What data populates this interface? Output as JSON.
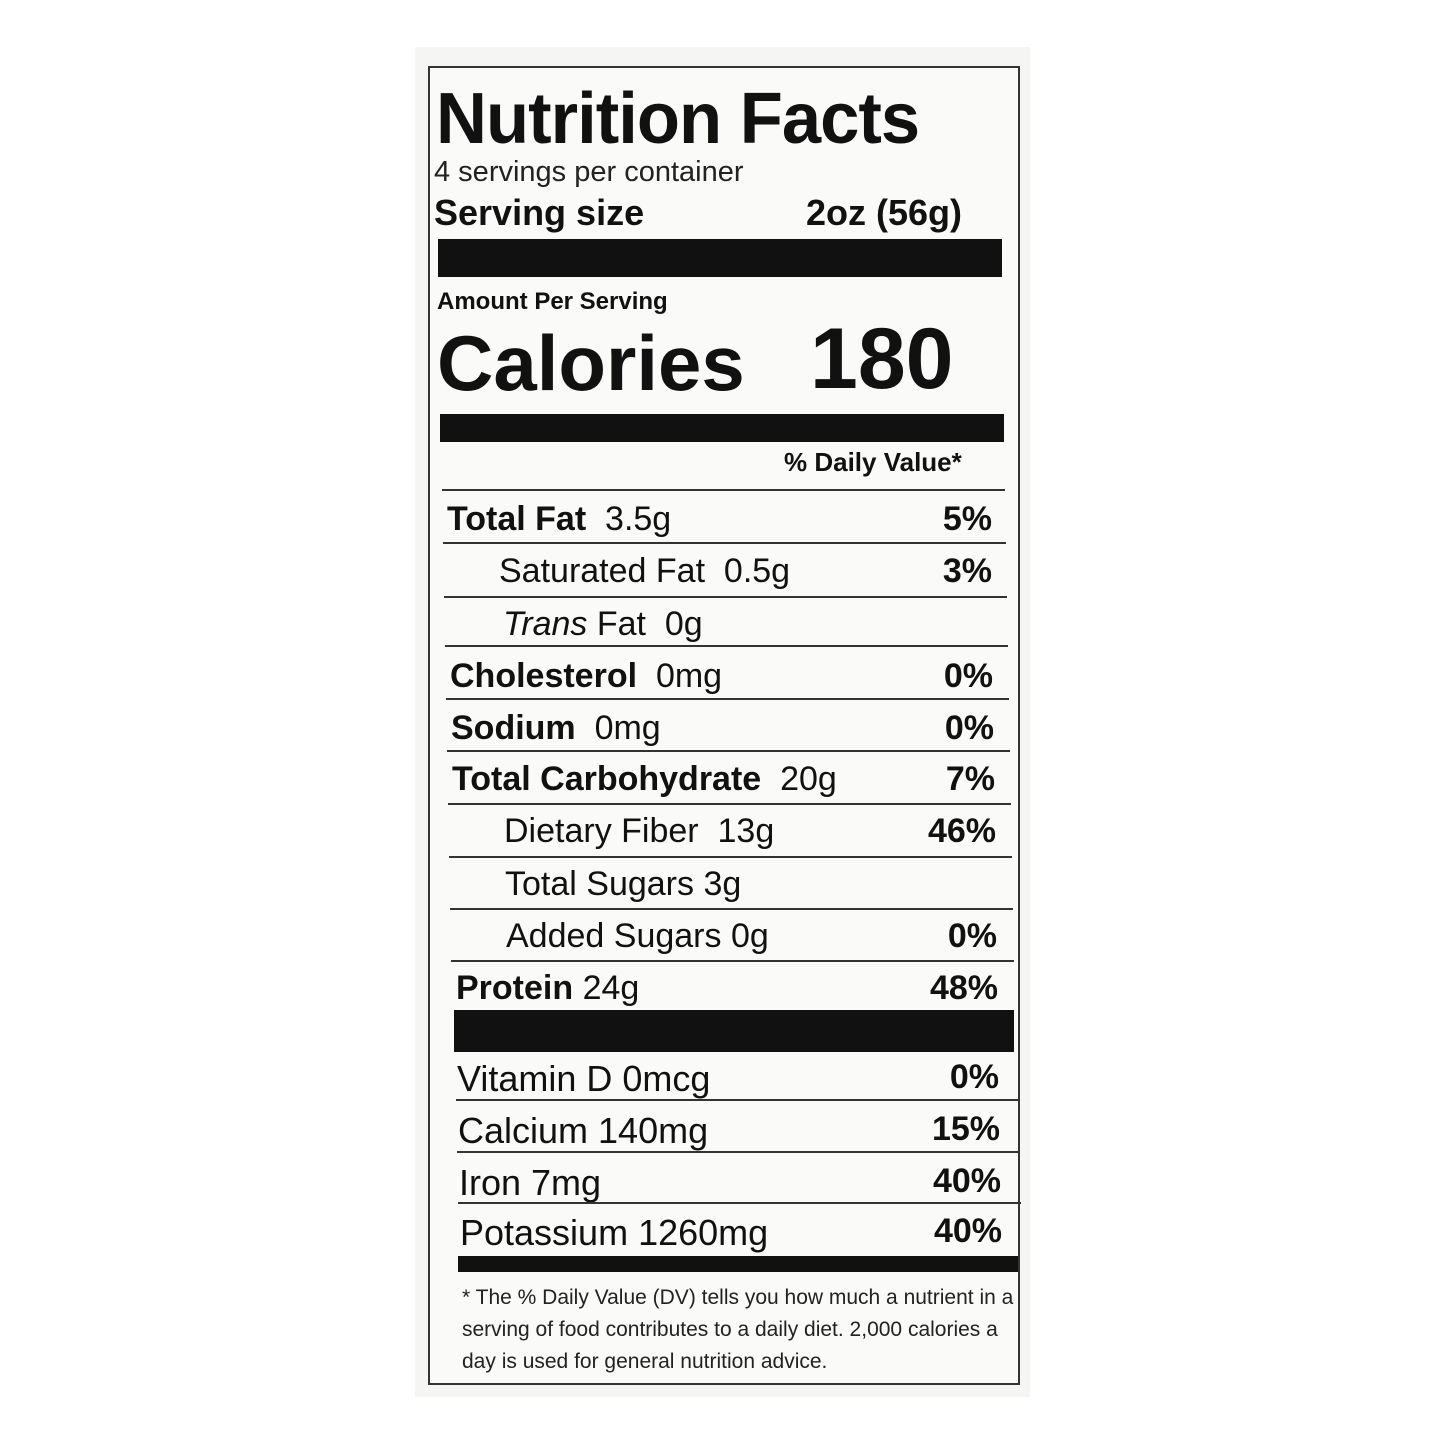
{
  "title": "Nutrition Facts",
  "servings_per_container": "4 servings per container",
  "serving_size": {
    "label": "Serving size",
    "value": "2oz (56g)"
  },
  "amount_per_serving": "Amount Per Serving",
  "calories": {
    "label": "Calories",
    "value": "180"
  },
  "daily_value_header": "% Daily Value*",
  "nutrients": [
    {
      "name": "Total Fat",
      "amount": "3.5g",
      "dv": "5%"
    },
    {
      "name": "Saturated Fat",
      "amount": "0.5g",
      "dv": "3%"
    },
    {
      "name_italic": "Trans",
      "name": "Fat",
      "amount": "0g",
      "dv": ""
    },
    {
      "name": "Cholesterol",
      "amount": "0mg",
      "dv": "0%"
    },
    {
      "name": "Sodium",
      "amount": "0mg",
      "dv": "0%"
    },
    {
      "name": "Total Carbohydrate",
      "amount": "20g",
      "dv": "7%"
    },
    {
      "name": "Dietary Fiber",
      "amount": "13g",
      "dv": "46%"
    },
    {
      "name": "Total Sugars",
      "amount": "3g",
      "dv": ""
    },
    {
      "name": "Added Sugars",
      "amount": "0g",
      "dv": "0%"
    },
    {
      "name": "Protein",
      "amount": "24g",
      "dv": "48%"
    }
  ],
  "vitamins": [
    {
      "text": "Vitamin D 0mcg",
      "dv": "0%"
    },
    {
      "text": "Calcium 140mg",
      "dv": "15%"
    },
    {
      "text": "Iron 7mg",
      "dv": "40%"
    },
    {
      "text": "Potassium 1260mg",
      "dv": "40%"
    }
  ],
  "footnote": "* The % Daily Value (DV) tells you how much a nutrient in a serving of food contributes to a daily diet. 2,000 calories a day is used for general nutrition advice."
}
